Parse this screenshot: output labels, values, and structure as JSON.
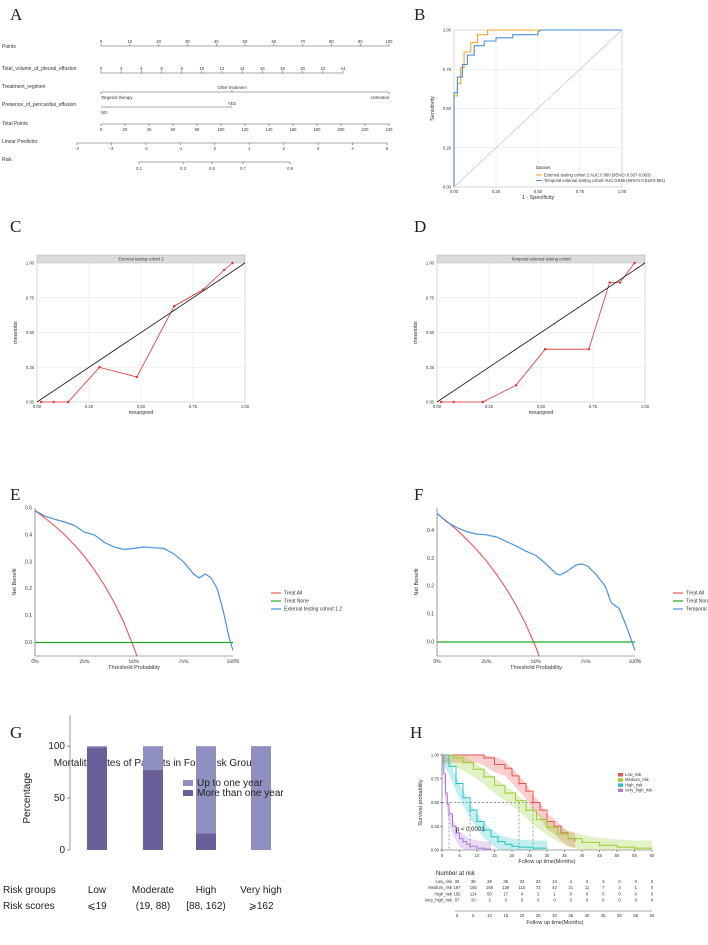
{
  "letters": {
    "A": "A",
    "B": "B",
    "C": "C",
    "D": "D",
    "E": "E",
    "F": "F",
    "G": "G",
    "H": "H"
  },
  "chart_data": [
    {
      "panel": "A",
      "type": "nomogram",
      "rows": [
        {
          "label": "Points",
          "ticks": [
            "0",
            "10",
            "20",
            "30",
            "40",
            "50",
            "60",
            "70",
            "80",
            "90",
            "100"
          ],
          "range": [
            0,
            100
          ]
        },
        {
          "label": "Total_volume_of_pleural_effusion",
          "ticks": [
            "0",
            "2",
            "4",
            "6",
            "8",
            "10",
            "12",
            "14",
            "16",
            "18",
            "20",
            "22",
            "24"
          ],
          "range": [
            0,
            24
          ]
        },
        {
          "label": "Treatment_regimen",
          "ticks": [
            "Targeted therapy",
            "Other treatment",
            "Untreated"
          ]
        },
        {
          "label": "Presence_of_pericardial_effusion",
          "ticks": [
            "NO",
            "YES"
          ]
        },
        {
          "label": "Total Points",
          "ticks": [
            "0",
            "20",
            "40",
            "60",
            "80",
            "100",
            "120",
            "140",
            "160",
            "180",
            "200",
            "220",
            "240"
          ],
          "range": [
            0,
            240
          ]
        },
        {
          "label": "Linear Predictor",
          "ticks": [
            "-4",
            "-3",
            "-2",
            "-1",
            "0",
            "1",
            "2",
            "3",
            "4",
            "5"
          ],
          "range": [
            -4,
            5
          ]
        },
        {
          "label": "Risk",
          "ticks": [
            "0.1",
            "0.3",
            "0.5",
            "0.7",
            "0.9"
          ]
        }
      ]
    },
    {
      "panel": "B",
      "type": "line",
      "xlabel": "1 - Specificity",
      "ylabel": "Sensitivity",
      "xticks": [
        "0.00",
        "0.25",
        "0.50",
        "0.75",
        "1.00"
      ],
      "yticks": [
        "0.00",
        "0.25",
        "0.50",
        "0.75",
        "1.00"
      ],
      "legend_title": "Dataset",
      "series": [
        {
          "name": "External testing cohort 2 AUC:0.960 (95%CI:0.937-0.983)",
          "color": "#f5a623",
          "x": [
            0,
            0,
            0.02,
            0.02,
            0.04,
            0.04,
            0.06,
            0.06,
            0.1,
            0.1,
            0.14,
            0.14,
            0.2,
            0.2,
            0.26,
            0.3,
            0.4,
            0.5,
            1
          ],
          "y": [
            0,
            0.58,
            0.58,
            0.66,
            0.66,
            0.76,
            0.76,
            0.86,
            0.86,
            0.92,
            0.92,
            0.97,
            0.97,
            1,
            1,
            1,
            1,
            1,
            1
          ]
        },
        {
          "name": "Temporal external testing cohort AUC:0.949 (95%CI:0.919-0.981)",
          "color": "#4a90d9",
          "x": [
            0,
            0,
            0.02,
            0.02,
            0.05,
            0.05,
            0.08,
            0.08,
            0.12,
            0.12,
            0.18,
            0.18,
            0.25,
            0.25,
            0.35,
            0.35,
            0.5,
            0.5,
            0.52,
            1
          ],
          "y": [
            0,
            0.6,
            0.6,
            0.7,
            0.7,
            0.78,
            0.78,
            0.84,
            0.84,
            0.9,
            0.9,
            0.93,
            0.93,
            0.95,
            0.95,
            0.97,
            0.97,
            0.99,
            1,
            1
          ]
        },
        {
          "name": "reference",
          "color": "#bbbbbb",
          "x": [
            0,
            1
          ],
          "y": [
            0,
            1
          ]
        }
      ]
    },
    {
      "panel": "C",
      "type": "line",
      "strip": "External testing cohort 2",
      "xlabel": "meanpred",
      "ylabel": "meanobs",
      "xticks": [
        "0.00",
        "0.25",
        "0.50",
        "0.75",
        "1.00"
      ],
      "yticks": [
        "0.00",
        "0.25",
        "0.50",
        "0.75",
        "1.00"
      ],
      "series": [
        {
          "name": "calibration",
          "color": "#e03030",
          "x": [
            0.02,
            0.08,
            0.15,
            0.3,
            0.48,
            0.66,
            0.8,
            0.9,
            0.94
          ],
          "y": [
            0,
            0,
            0,
            0.25,
            0.18,
            0.69,
            0.81,
            0.95,
            1
          ]
        },
        {
          "name": "ideal",
          "color": "#222222",
          "x": [
            0,
            1
          ],
          "y": [
            0,
            1
          ]
        }
      ]
    },
    {
      "panel": "D",
      "type": "line",
      "strip": "Temporal external testing cohort",
      "xlabel": "meanpred",
      "ylabel": "meanobs",
      "xticks": [
        "0.00",
        "0.25",
        "0.50",
        "0.75",
        "1.00"
      ],
      "yticks": [
        "0.00",
        "0.25",
        "0.50",
        "0.75",
        "1.00"
      ],
      "series": [
        {
          "name": "calibration",
          "color": "#e03030",
          "x": [
            0.02,
            0.08,
            0.22,
            0.38,
            0.52,
            0.73,
            0.83,
            0.88,
            0.95
          ],
          "y": [
            0,
            0,
            0,
            0.12,
            0.38,
            0.38,
            0.86,
            0.86,
            1
          ]
        },
        {
          "name": "ideal",
          "color": "#222222",
          "x": [
            0,
            1
          ],
          "y": [
            0,
            1
          ]
        }
      ]
    },
    {
      "panel": "E",
      "type": "line",
      "xlabel": "Threshold Probability",
      "ylabel": "Net Benefit",
      "xticks": [
        "0%",
        "25%",
        "50%",
        "75%",
        "100%"
      ],
      "yticks": [
        "0.0",
        "0.1",
        "0.2",
        "0.3",
        "0.4",
        "0.5"
      ],
      "ylim": [
        -0.05,
        0.5
      ],
      "series": [
        {
          "name": "Treat All",
          "color": "#ee5555",
          "x": [
            0,
            0.05,
            0.1,
            0.15,
            0.2,
            0.25,
            0.3,
            0.35,
            0.4,
            0.45,
            0.5,
            0.52
          ],
          "y": [
            0.49,
            0.463,
            0.433,
            0.4,
            0.362,
            0.32,
            0.27,
            0.214,
            0.149,
            0.073,
            -0.02,
            -0.06
          ]
        },
        {
          "name": "Treat None",
          "color": "#22aa22",
          "x": [
            0,
            1
          ],
          "y": [
            0,
            0
          ]
        },
        {
          "name": "External testing cohort 1.2",
          "color": "#4a90e2",
          "x": [
            0,
            0.05,
            0.1,
            0.15,
            0.2,
            0.25,
            0.3,
            0.35,
            0.4,
            0.45,
            0.5,
            0.55,
            0.6,
            0.65,
            0.7,
            0.75,
            0.8,
            0.83,
            0.86,
            0.89,
            0.92,
            0.95,
            0.98,
            1
          ],
          "y": [
            0.49,
            0.47,
            0.458,
            0.448,
            0.435,
            0.41,
            0.4,
            0.372,
            0.355,
            0.346,
            0.35,
            0.355,
            0.352,
            0.35,
            0.33,
            0.3,
            0.255,
            0.24,
            0.255,
            0.24,
            0.2,
            0.12,
            0.02,
            -0.03
          ]
        }
      ]
    },
    {
      "panel": "F",
      "type": "line",
      "xlabel": "Threshold Probability",
      "ylabel": "Net Benefit",
      "xticks": [
        "0%",
        "25%",
        "50%",
        "75%",
        "100%"
      ],
      "yticks": [
        "0.0",
        "0.1",
        "0.2",
        "0.3",
        "0.4"
      ],
      "ylim": [
        -0.05,
        0.48
      ],
      "series": [
        {
          "name": "Treat All",
          "color": "#ee5555",
          "x": [
            0,
            0.05,
            0.1,
            0.15,
            0.2,
            0.25,
            0.3,
            0.35,
            0.4,
            0.45,
            0.5,
            0.52
          ],
          "y": [
            0.46,
            0.432,
            0.402,
            0.368,
            0.331,
            0.29,
            0.243,
            0.191,
            0.131,
            0.062,
            -0.02,
            -0.06
          ]
        },
        {
          "name": "Treat None",
          "color": "#22aa22",
          "x": [
            0,
            1
          ],
          "y": [
            0,
            0
          ]
        },
        {
          "name": "Temporal external testing cohort",
          "color": "#4a90e2",
          "x": [
            0,
            0.05,
            0.1,
            0.15,
            0.2,
            0.25,
            0.3,
            0.35,
            0.4,
            0.45,
            0.5,
            0.55,
            0.6,
            0.62,
            0.65,
            0.7,
            0.73,
            0.76,
            0.8,
            0.85,
            0.88,
            0.92,
            0.96,
            1
          ],
          "y": [
            0.46,
            0.43,
            0.41,
            0.395,
            0.387,
            0.384,
            0.376,
            0.36,
            0.344,
            0.325,
            0.31,
            0.28,
            0.245,
            0.24,
            0.25,
            0.275,
            0.28,
            0.272,
            0.245,
            0.2,
            0.14,
            0.12,
            0.05,
            -0.03
          ]
        }
      ]
    },
    {
      "panel": "G",
      "type": "bar",
      "title": "Mortality Rates of Patients in Four Risk Groups",
      "ylabel": "Percentage",
      "yticks": [
        "0",
        "50",
        "100"
      ],
      "ylim": [
        0,
        130
      ],
      "categories": [
        "Low",
        "Moderate",
        "High",
        "Very high"
      ],
      "risk_scores": [
        "⩽19",
        "(19, 88)",
        "[88, 162)",
        "⩾162"
      ],
      "row_labels": {
        "groups": "Risk groups",
        "scores": "Risk scores"
      },
      "series": [
        {
          "name": "Up to one year",
          "color": "#8f8fc0",
          "values": [
            1,
            23,
            84,
            100
          ]
        },
        {
          "name": "More than one year",
          "color": "#6a5f99",
          "values": [
            99,
            77,
            16,
            0
          ]
        }
      ]
    },
    {
      "panel": "H",
      "type": "line",
      "xlabel": "Follow up time(Months)",
      "ylabel": "Survival probability",
      "xticks": [
        "0",
        "5",
        "10",
        "15",
        "20",
        "25",
        "30",
        "35",
        "40",
        "45",
        "50",
        "55",
        "60"
      ],
      "yticks": [
        "0.00",
        "0.25",
        "0.50",
        "0.75",
        "1.00"
      ],
      "pvalue": "p < 0.0001",
      "risk_table_title": "Number at risk",
      "risk_table_x": [
        "0",
        "5",
        "10",
        "15",
        "20",
        "25",
        "30",
        "35",
        "40",
        "45",
        "50",
        "55",
        "60"
      ],
      "series": [
        {
          "name": "Low_risk",
          "color": "#e8534f",
          "x": [
            0,
            10,
            12,
            15,
            18,
            20,
            22,
            24,
            26,
            28,
            30,
            32,
            34,
            36,
            38
          ],
          "y": [
            1,
            1,
            0.97,
            0.9,
            0.86,
            0.78,
            0.7,
            0.62,
            0.5,
            0.42,
            0.3,
            0.25,
            0.18,
            0.12,
            0.1
          ],
          "at_risk": [
            "38",
            "38",
            "38",
            "36",
            "32",
            "23",
            "13",
            "4",
            "2",
            "2",
            "0",
            "0",
            "0"
          ]
        },
        {
          "name": "Medium_risk",
          "color": "#9acd32",
          "x": [
            0,
            3,
            6,
            9,
            12,
            15,
            18,
            21,
            24,
            27,
            30,
            33,
            36,
            40,
            45,
            50,
            55,
            60
          ],
          "y": [
            1,
            0.97,
            0.92,
            0.85,
            0.77,
            0.68,
            0.6,
            0.52,
            0.42,
            0.32,
            0.24,
            0.17,
            0.12,
            0.08,
            0.05,
            0.03,
            0.02,
            0.02
          ],
          "at_risk": [
            "187",
            "165",
            "168",
            "139",
            "110",
            "72",
            "42",
            "21",
            "11",
            "7",
            "3",
            "1",
            "0"
          ]
        },
        {
          "name": "High_risk",
          "color": "#29c4c4",
          "x": [
            0,
            2,
            4,
            6,
            8,
            10,
            12,
            14,
            16,
            18,
            20,
            22,
            26,
            30
          ],
          "y": [
            1,
            0.88,
            0.7,
            0.55,
            0.42,
            0.3,
            0.21,
            0.14,
            0.09,
            0.06,
            0.04,
            0.03,
            0.02,
            0.02
          ],
          "at_risk": [
            "155",
            "114",
            "50",
            "17",
            "4",
            "2",
            "1",
            "0",
            "0",
            "0",
            "0",
            "0",
            "0"
          ]
        },
        {
          "name": "Very_high_risk",
          "color": "#b07ad6",
          "x": [
            0,
            0.5,
            1,
            1.5,
            2,
            3,
            4,
            5,
            6,
            7,
            8,
            10,
            12,
            14
          ],
          "y": [
            1,
            0.8,
            0.6,
            0.48,
            0.38,
            0.25,
            0.18,
            0.12,
            0.09,
            0.06,
            0.04,
            0.02,
            0.01,
            0.01
          ],
          "at_risk": [
            "87",
            "10",
            "2",
            "0",
            "0",
            "0",
            "0",
            "0",
            "0",
            "0",
            "0",
            "0",
            "0"
          ]
        }
      ]
    }
  ]
}
